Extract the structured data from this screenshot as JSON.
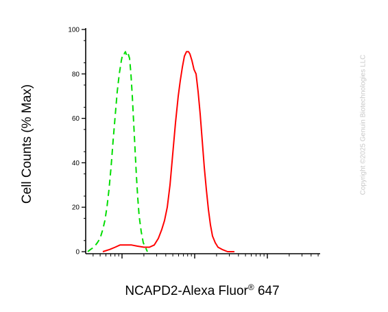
{
  "chart_data": {
    "type": "line",
    "ylabel": "Cell Counts (% Max)",
    "xlabel": "NCAPD2-Alexa Fluor",
    "xlabel_sup": "®",
    "xlabel_suffix": " 647",
    "ylim": [
      0,
      100
    ],
    "yticks": [
      0,
      20,
      40,
      60,
      80,
      100
    ],
    "x_scale": "log",
    "x_tick_labels": "none",
    "grid": false,
    "legend": "none",
    "series": [
      {
        "color": "#00dd00",
        "style": "dashed",
        "points": [
          [
            128,
            0
          ],
          [
            132,
            1
          ],
          [
            137,
            2
          ],
          [
            142,
            4
          ],
          [
            146,
            6
          ],
          [
            150,
            10
          ],
          [
            153,
            14
          ],
          [
            156,
            20
          ],
          [
            159,
            28
          ],
          [
            162,
            38
          ],
          [
            165,
            50
          ],
          [
            168,
            61
          ],
          [
            171,
            72
          ],
          [
            174,
            80
          ],
          [
            177,
            86
          ],
          [
            179,
            89
          ],
          [
            181,
            89
          ],
          [
            183,
            90
          ],
          [
            185,
            88
          ],
          [
            187,
            89
          ],
          [
            189,
            87
          ],
          [
            191,
            80
          ],
          [
            193,
            70
          ],
          [
            195,
            58
          ],
          [
            197,
            46
          ],
          [
            199,
            34
          ],
          [
            201,
            24
          ],
          [
            203,
            16
          ],
          [
            206,
            9
          ],
          [
            209,
            4
          ],
          [
            212,
            2
          ],
          [
            215,
            0
          ]
        ]
      },
      {
        "color": "#ff0000",
        "style": "solid",
        "points": [
          [
            150,
            0
          ],
          [
            160,
            1
          ],
          [
            168,
            2
          ],
          [
            175,
            3
          ],
          [
            183,
            3
          ],
          [
            192,
            3
          ],
          [
            200,
            2.5
          ],
          [
            210,
            2
          ],
          [
            218,
            2
          ],
          [
            225,
            3
          ],
          [
            231,
            6
          ],
          [
            236,
            10
          ],
          [
            240,
            14
          ],
          [
            244,
            20
          ],
          [
            248,
            30
          ],
          [
            252,
            44
          ],
          [
            256,
            58
          ],
          [
            260,
            70
          ],
          [
            263,
            77
          ],
          [
            266,
            83
          ],
          [
            269,
            88
          ],
          [
            272,
            90
          ],
          [
            275,
            90
          ],
          [
            277,
            89
          ],
          [
            280,
            86
          ],
          [
            283,
            82
          ],
          [
            286,
            80
          ],
          [
            289,
            72
          ],
          [
            292,
            62
          ],
          [
            295,
            50
          ],
          [
            298,
            38
          ],
          [
            301,
            28
          ],
          [
            304,
            19
          ],
          [
            307,
            12
          ],
          [
            310,
            7
          ],
          [
            314,
            4
          ],
          [
            318,
            2
          ],
          [
            324,
            1
          ],
          [
            332,
            0
          ],
          [
            342,
            0
          ]
        ]
      }
    ]
  },
  "watermark": "Copyright ©2025 Genuin Biotechnologies LLC"
}
